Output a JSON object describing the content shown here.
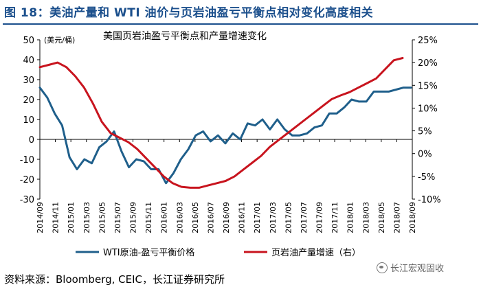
{
  "figure": {
    "title": "图 18：美油产量和 WTI 油价与页岩油盈亏平衡点相对变化高度相关",
    "source": "资料来源：Bloomberg, CEIC，长江证券研究所",
    "watermark": "长江宏观固收"
  },
  "chart_data": {
    "type": "line",
    "title": "美国页岩油盈亏平衡点和产量增速变化",
    "left_axis_unit": "(美元/桶)",
    "left_ylim": [
      -30,
      50
    ],
    "left_ticks": [
      "50",
      "40",
      "30",
      "20",
      "10",
      "0",
      "-10",
      "-20",
      "-30"
    ],
    "right_ylim": [
      -10,
      25
    ],
    "right_ticks": [
      "25%",
      "20%",
      "15%",
      "10%",
      "5%",
      "0%",
      "-5%",
      "-10%"
    ],
    "x_tick_labels": [
      "2014/09",
      "2014/11",
      "2015/01",
      "2015/03",
      "2015/05",
      "2015/07",
      "2015/09",
      "2015/11",
      "2016/01",
      "2016/03",
      "2016/05",
      "2016/07",
      "2016/09",
      "2016/11",
      "2017/01",
      "2017/03",
      "2017/05",
      "2017/07",
      "2017/09",
      "2017/11",
      "2018/01",
      "2018/03",
      "2018/05",
      "2018/07",
      "2018/09"
    ],
    "series": [
      {
        "name": "WTI原油-盈亏平衡价格",
        "axis": "left",
        "color": "#1f5f8b",
        "values": [
          26,
          21,
          13,
          7,
          -9,
          -15,
          -10,
          -12,
          -4,
          -1,
          4,
          -6,
          -14,
          -10,
          -11,
          -15,
          -15,
          -22,
          -17,
          -10,
          -5,
          2,
          4,
          -1,
          2,
          -2,
          3,
          0,
          8,
          7,
          10,
          5,
          10,
          5,
          2,
          2,
          3,
          6,
          7,
          13,
          13,
          16,
          20,
          19,
          19,
          24,
          24,
          24,
          25,
          26,
          26
        ]
      },
      {
        "name": "页岩油产量增速（右）",
        "axis": "right",
        "color": "#c8141e",
        "values": [
          19,
          19.5,
          20,
          19,
          17,
          14.5,
          11,
          7,
          4.5,
          3.5,
          2.5,
          1,
          -1,
          -3,
          -5,
          -6.5,
          -7.3,
          -7.5,
          -7.5,
          -7,
          -6.5,
          -6,
          -5,
          -3.5,
          -2,
          -0.5,
          1.5,
          3,
          4.5,
          6,
          7.5,
          9,
          10.5,
          12,
          12.8,
          13.5,
          14.5,
          15.5,
          16.5,
          18.5,
          20.5,
          21
        ]
      }
    ],
    "legend": [
      "WTI原油-盈亏平衡价格",
      "页岩油产量增速（右）"
    ],
    "legend_position": "bottom"
  }
}
